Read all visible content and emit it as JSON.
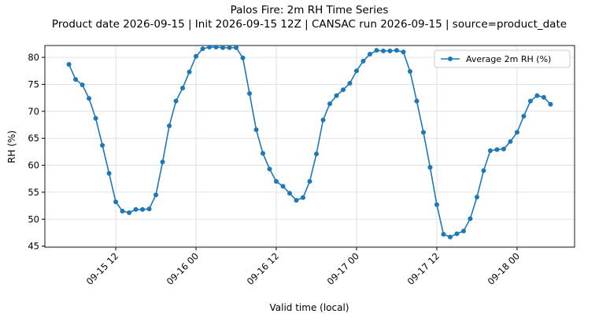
{
  "chart_data": {
    "type": "line",
    "title": "Palos Fire: 2m RH Time Series",
    "subtitle": "Product date 2026-09-15 | Init 2026-09-15 12Z | CANSAC run 2026-09-15 | source=product_date",
    "x_label": "Valid time (local)",
    "y_label": "RH (%)",
    "x": [
      "09-15 05",
      "09-15 06",
      "09-15 07",
      "09-15 08",
      "09-15 09",
      "09-15 10",
      "09-15 11",
      "09-15 12",
      "09-15 13",
      "09-15 14",
      "09-15 15",
      "09-15 16",
      "09-15 17",
      "09-15 18",
      "09-15 19",
      "09-15 20",
      "09-15 21",
      "09-15 22",
      "09-15 23",
      "09-16 00",
      "09-16 01",
      "09-16 02",
      "09-16 03",
      "09-16 04",
      "09-16 05",
      "09-16 06",
      "09-16 07",
      "09-16 08",
      "09-16 09",
      "09-16 10",
      "09-16 11",
      "09-16 12",
      "09-16 13",
      "09-16 14",
      "09-16 15",
      "09-16 16",
      "09-16 17",
      "09-16 18",
      "09-16 19",
      "09-16 20",
      "09-16 21",
      "09-16 22",
      "09-16 23",
      "09-17 00",
      "09-17 01",
      "09-17 02",
      "09-17 03",
      "09-17 04",
      "09-17 05",
      "09-17 06",
      "09-17 07",
      "09-17 08",
      "09-17 09",
      "09-17 10",
      "09-17 11",
      "09-17 12",
      "09-17 13",
      "09-17 14",
      "09-17 15",
      "09-17 16",
      "09-17 17",
      "09-17 18",
      "09-17 19",
      "09-17 20",
      "09-17 21",
      "09-17 22",
      "09-17 23",
      "09-18 00",
      "09-18 01",
      "09-18 02",
      "09-18 03",
      "09-18 04",
      "09-18 05"
    ],
    "series": [
      {
        "name": "Average 2m RH (%)",
        "color": "#1f77b4",
        "values": [
          78.7,
          75.9,
          74.9,
          72.4,
          68.7,
          63.7,
          58.5,
          53.2,
          51.5,
          51.2,
          51.8,
          51.8,
          51.9,
          54.5,
          60.6,
          67.3,
          71.9,
          74.3,
          77.3,
          80.2,
          81.6,
          81.9,
          81.9,
          81.8,
          81.8,
          81.8,
          79.9,
          73.3,
          66.6,
          62.2,
          59.3,
          57.0,
          56.1,
          54.8,
          53.5,
          54.0,
          57.0,
          62.1,
          68.4,
          71.4,
          72.9,
          74.0,
          75.2,
          77.5,
          79.3,
          80.6,
          81.3,
          81.2,
          81.2,
          81.3,
          81.0,
          77.4,
          71.9,
          66.1,
          59.6,
          52.7,
          47.2,
          46.7,
          47.3,
          47.8,
          50.1,
          54.1,
          59.0,
          62.7,
          62.9,
          63.0,
          64.4,
          66.1,
          69.1,
          71.9,
          72.9,
          72.6,
          71.3
        ]
      }
    ],
    "xticks": [
      "09-15 12",
      "09-16 00",
      "09-16 12",
      "09-17 00",
      "09-17 12",
      "09-18 00"
    ],
    "ylim": [
      44.8,
      82.2
    ],
    "yticks": [
      45,
      50,
      55,
      60,
      65,
      70,
      75,
      80
    ],
    "grid": true,
    "legend": "upper right"
  }
}
